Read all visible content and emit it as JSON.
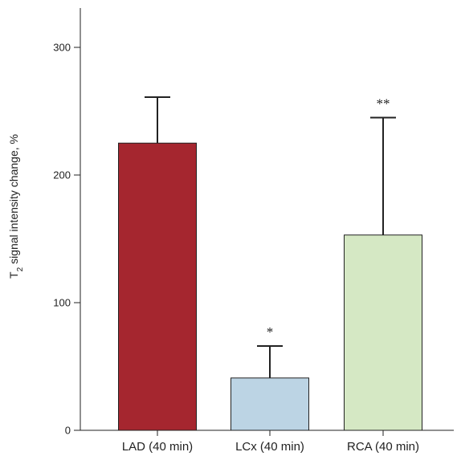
{
  "chart_data": {
    "type": "bar",
    "title": "",
    "xlabel": "",
    "ylabel": {
      "prefix": "T",
      "subscript": "2",
      "suffix": " signal intensity change, %"
    },
    "categories": [
      "LAD (40 min)",
      "LCx (40 min)",
      "RCA (40 min)"
    ],
    "values": [
      225,
      41,
      153
    ],
    "error_upper": [
      261,
      66,
      245
    ],
    "significance": [
      "",
      "*",
      "**"
    ],
    "colors": [
      "#a5262f",
      "#bcd4e4",
      "#d5e8c4"
    ],
    "ylim": [
      0,
      330
    ],
    "yticks": [
      0,
      100,
      200,
      300
    ],
    "grid": false,
    "legend": "none"
  }
}
